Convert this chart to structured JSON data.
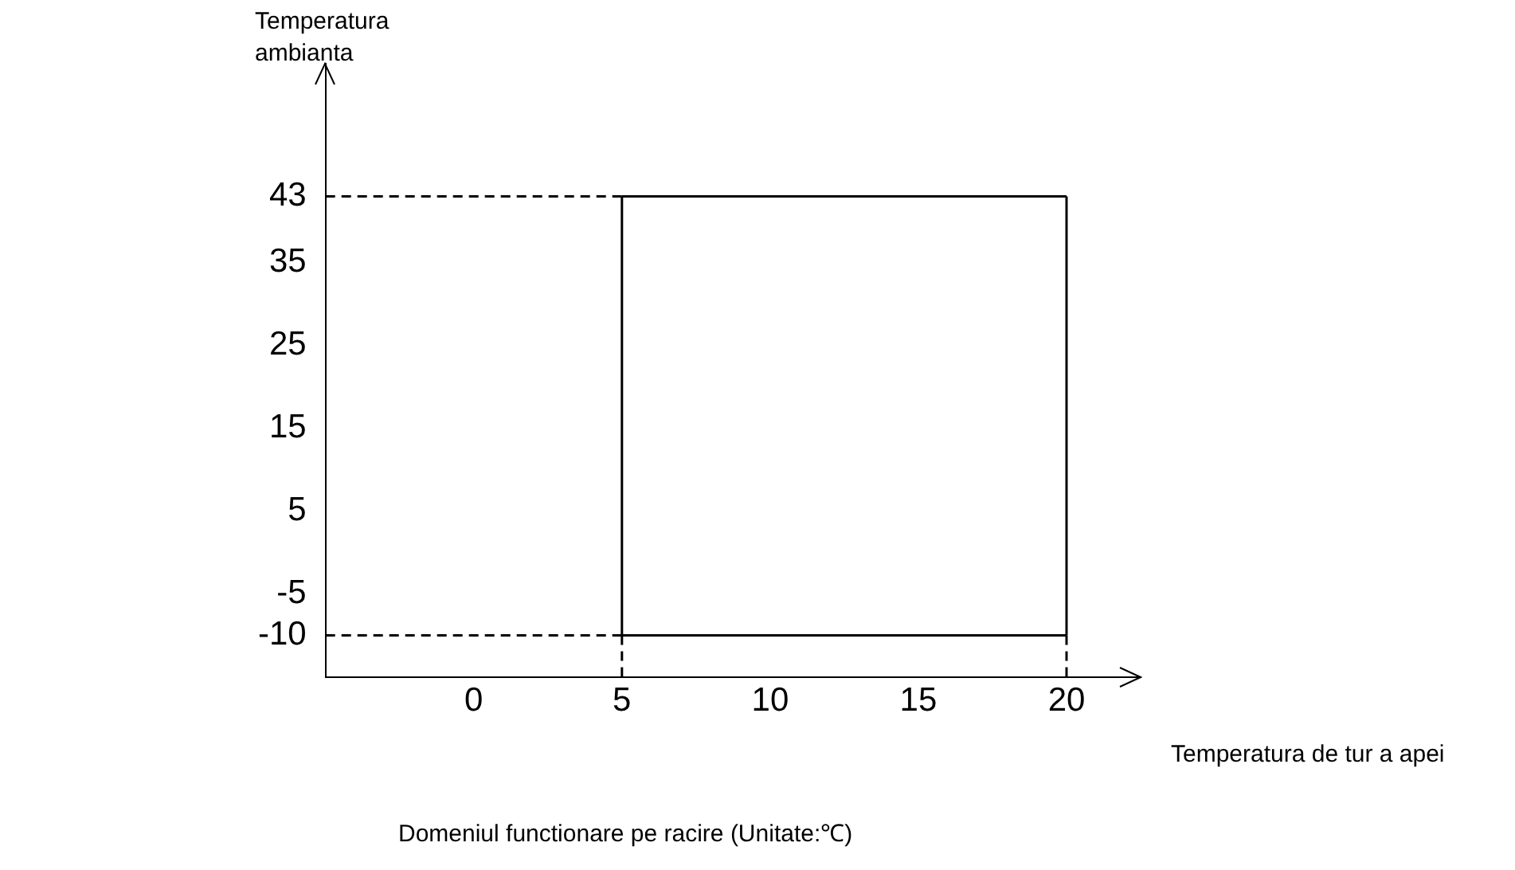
{
  "chart_data": {
    "type": "line",
    "ylabel": "Temperatura ambianta",
    "xlabel": "Temperatura de tur a apei",
    "annotations": [
      "Domeniul functionare pe racire (Unitate:℃)"
    ],
    "series": [
      {
        "color": "#000000",
        "x": [
          5,
          20
        ],
        "values": [
          -10,
          -10
        ]
      },
      {
        "color": "#000000",
        "x": [
          5,
          20
        ],
        "values": [
          43,
          43
        ]
      },
      {
        "color": "#000000",
        "x": [
          5,
          5
        ],
        "values": [
          -10,
          43
        ]
      },
      {
        "color": "#000000",
        "x": [
          20,
          20
        ],
        "values": [
          -10,
          43
        ]
      },
      {
        "color": "#000000",
        "x": [
          -5,
          5
        ],
        "values": [
          43,
          43
        ],
        "line_style": "dashed"
      },
      {
        "color": "#000000",
        "x": [
          -5,
          5
        ],
        "values": [
          -10,
          -10
        ],
        "line_style": "dashed"
      },
      {
        "color": "#000000",
        "x": [
          5,
          5
        ],
        "values": [
          -15,
          -10
        ],
        "line_style": "dashed"
      },
      {
        "color": "#000000",
        "x": [
          20,
          20
        ],
        "values": [
          -15,
          -10
        ],
        "line_style": "dashed"
      }
    ],
    "xlim": [
      -5,
      22.5
    ],
    "xticks": [
      0,
      5,
      10,
      15,
      20
    ],
    "ylim": [
      -15,
      59
    ],
    "yticks": [
      -10,
      -5,
      5,
      15,
      25,
      35,
      43
    ],
    "grid": false,
    "legend": false,
    "marker": "none",
    "line_style": "solid"
  }
}
